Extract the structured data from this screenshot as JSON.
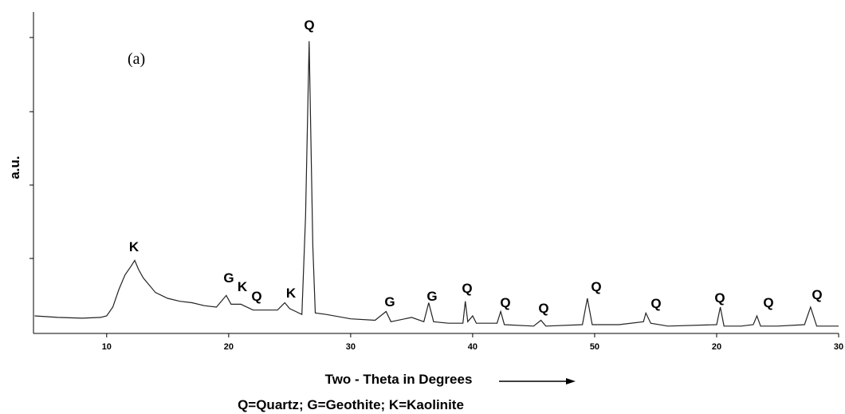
{
  "chart_data": {
    "type": "line",
    "title": "(a)",
    "y_label": "a.u.",
    "x_label": "Two - Theta in  Degrees",
    "note": "Q=Quartz; G=Geothite; K=Kaolinite",
    "color": "#222222",
    "xlim": [
      4,
      70
    ],
    "ylim": [
      0,
      110
    ],
    "xticks": [
      10,
      20,
      30,
      40,
      50,
      {
        "value": 60,
        "label": "20"
      },
      {
        "value": 70,
        "label": "30"
      }
    ],
    "annotations": [
      "K",
      "G",
      "K",
      "Q",
      "K",
      "Q",
      "G",
      "G",
      "Q",
      "Q",
      "Q",
      "Q",
      "Q",
      "Q",
      "Q",
      "Q"
    ],
    "x": [
      4.1,
      6,
      8,
      9.5,
      10,
      10.5,
      11,
      11.5,
      12,
      12.3,
      12.6,
      13,
      14,
      15,
      16,
      17,
      18,
      19,
      19.8,
      20.2,
      21,
      22,
      23,
      24,
      24.6,
      25,
      25.5,
      26,
      26.3,
      26.6,
      26.9,
      27.1,
      28,
      30,
      32,
      32.9,
      33.3,
      35,
      36,
      36.4,
      36.8,
      38,
      39.2,
      39.4,
      39.6,
      40,
      40.3,
      41,
      42,
      42.3,
      42.6,
      45,
      45.6,
      46,
      49,
      49.4,
      49.8,
      52,
      54,
      54.2,
      54.6,
      56,
      60,
      60.3,
      60.6,
      62,
      63,
      63.3,
      63.6,
      65,
      67.2,
      67.7,
      68.2,
      70
    ],
    "values": [
      6,
      5.5,
      5.2,
      5.5,
      6,
      9,
      15,
      20,
      23,
      25,
      22,
      19,
      14,
      12,
      11,
      10.5,
      9.5,
      9,
      13,
      10,
      10,
      8,
      8,
      8,
      10.5,
      8.5,
      7.5,
      6.5,
      40,
      100,
      30,
      7,
      6.5,
      5,
      4.5,
      7.5,
      4,
      5.5,
      4,
      10.5,
      4,
      3.5,
      3.5,
      11,
      4,
      6,
      3.5,
      3.5,
      3.5,
      7.5,
      3,
      2.5,
      4.5,
      2.5,
      3,
      12,
      3,
      3,
      4,
      7,
      3.5,
      2.5,
      3,
      9,
      2.5,
      2.5,
      3,
      6,
      2.5,
      2.5,
      3,
      9,
      2.5,
      2.5
    ]
  }
}
